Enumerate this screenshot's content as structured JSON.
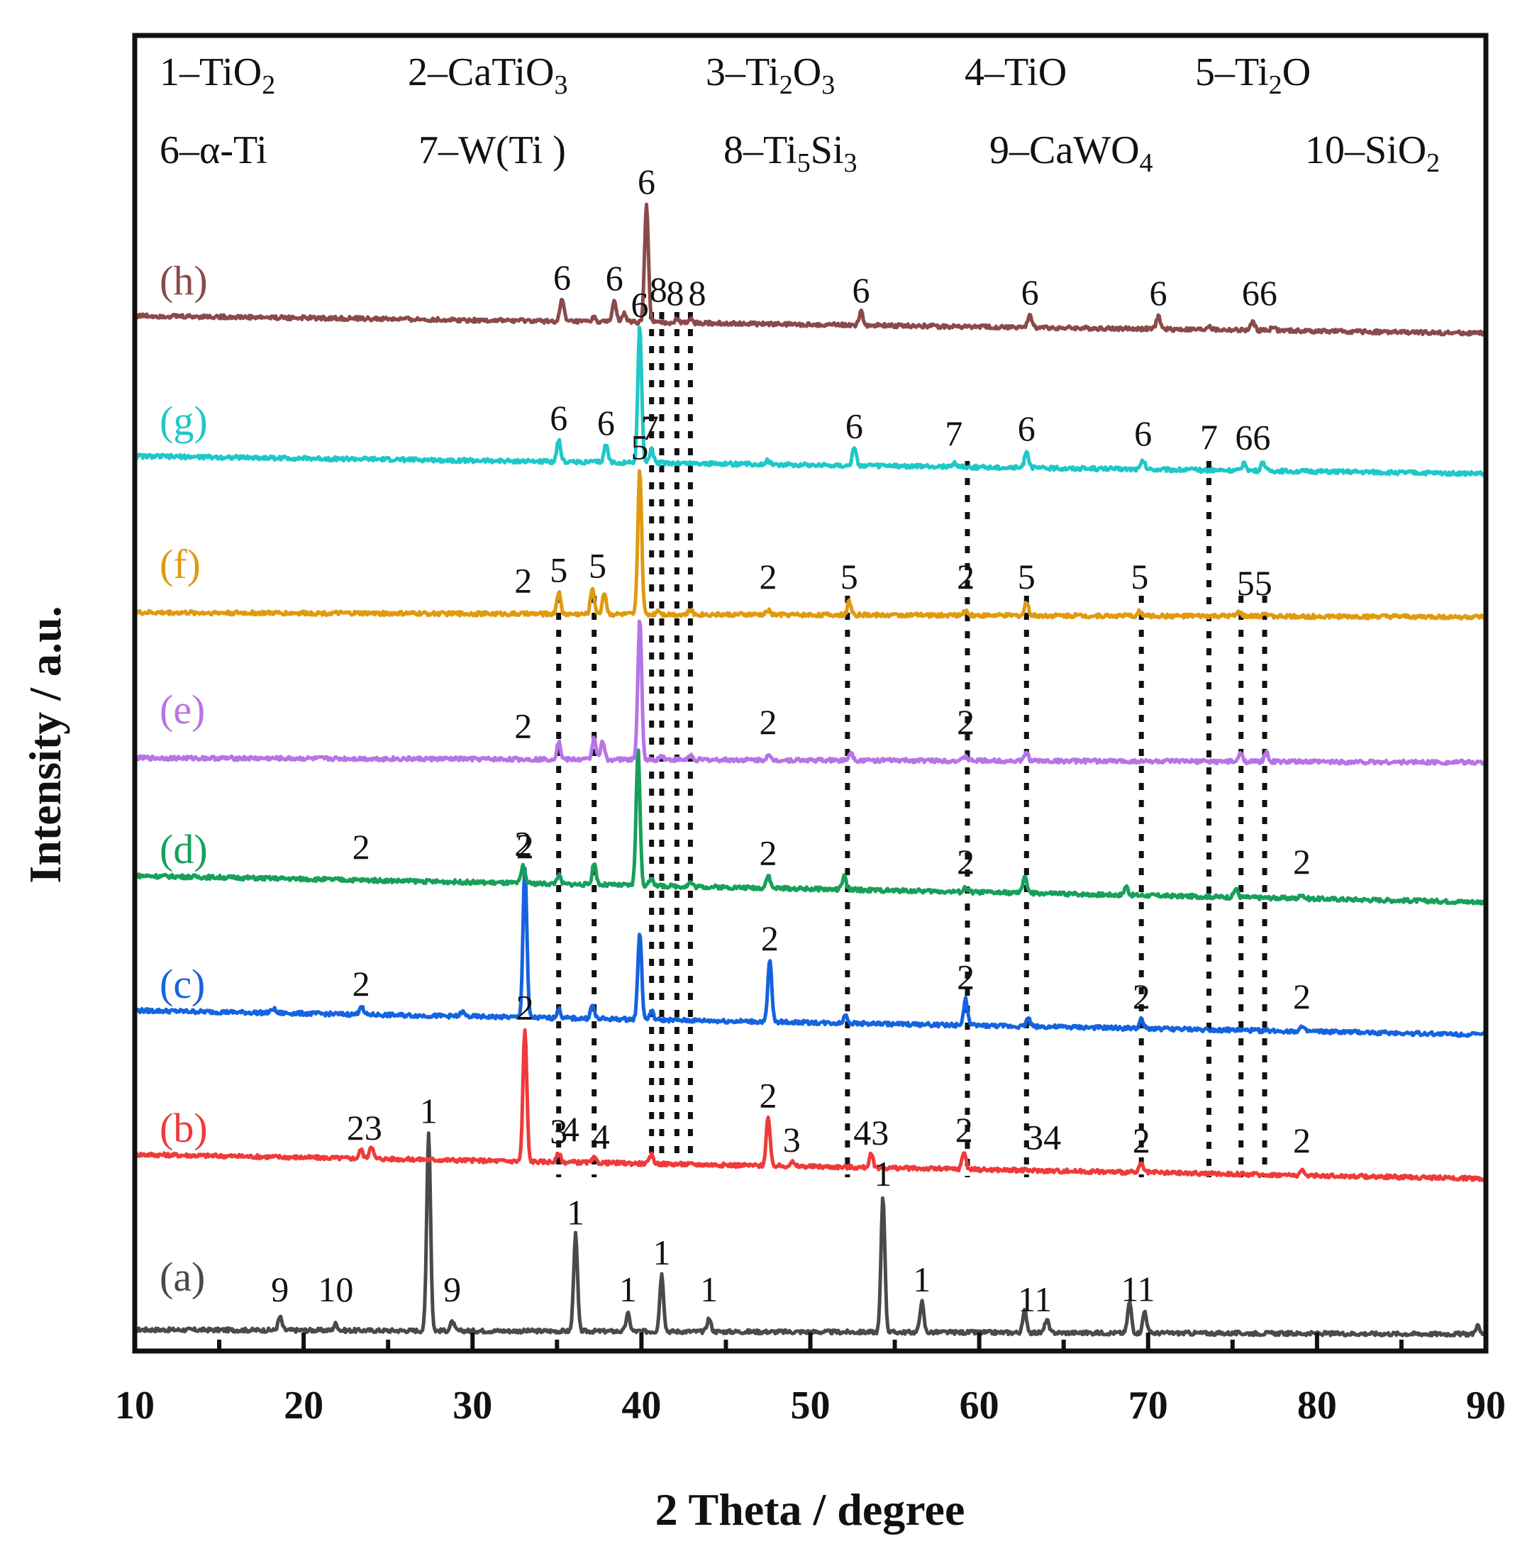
{
  "chart_data": {
    "type": "line",
    "xlabel": "2 Theta / degree",
    "ylabel": "Intensity / a.u.",
    "xlim": [
      10,
      90
    ],
    "x_ticks": [
      10,
      20,
      30,
      40,
      50,
      60,
      70,
      80,
      90
    ],
    "legend_rows": [
      [
        {
          "num": "1",
          "pre": "TiO",
          "sub1": "2",
          "mid": "",
          "sub2": ""
        },
        {
          "num": "2",
          "pre": "CaTiO",
          "sub1": "3",
          "mid": "",
          "sub2": ""
        },
        {
          "num": "3",
          "pre": "Ti",
          "sub1": "2",
          "mid": "O",
          "sub2": "3"
        },
        {
          "num": "4",
          "pre": "TiO",
          "sub1": "",
          "mid": "",
          "sub2": ""
        },
        {
          "num": "5",
          "pre": "Ti",
          "sub1": "2",
          "mid": "O",
          "sub2": ""
        }
      ],
      [
        {
          "num": "6",
          "pre": "α-Ti",
          "sub1": "",
          "mid": "",
          "sub2": ""
        },
        {
          "num": "7",
          "pre": "W(Ti )",
          "sub1": "",
          "mid": "",
          "sub2": ""
        },
        {
          "num": "8",
          "pre": "Ti",
          "sub1": "5",
          "mid": "Si",
          "sub2": "3"
        },
        {
          "num": "9",
          "pre": "CaWO",
          "sub1": "4",
          "mid": "",
          "sub2": ""
        },
        {
          "num": "10",
          "pre": "SiO",
          "sub1": "2",
          "mid": "",
          "sub2": ""
        }
      ]
    ],
    "reference_lines_2theta": [
      35.1,
      37.2,
      40.6,
      41.2,
      42.1,
      42.9,
      52.2,
      59.3,
      62.8,
      69.6,
      73.6,
      75.5,
      76.9
    ],
    "series": [
      {
        "name": "(a)",
        "color": "#4a4a4a",
        "baseline": [
          [
            10,
            0.0
          ],
          [
            90,
            -1.0
          ]
        ],
        "peaks": [
          [
            18.6,
            3
          ],
          [
            21.9,
            1.5
          ],
          [
            27.4,
            45
          ],
          [
            28.8,
            2
          ],
          [
            36.1,
            22
          ],
          [
            39.2,
            4
          ],
          [
            41.2,
            13
          ],
          [
            44.0,
            3
          ],
          [
            54.3,
            31
          ],
          [
            56.6,
            7
          ],
          [
            62.7,
            5
          ],
          [
            64.0,
            3
          ],
          [
            68.9,
            7
          ],
          [
            69.8,
            5
          ],
          [
            89.5,
            2
          ]
        ],
        "labels": [
          {
            "x": 18.6,
            "text": "9"
          },
          {
            "x": 21.9,
            "text": "10"
          },
          {
            "x": 27.4,
            "text": "1"
          },
          {
            "x": 28.8,
            "text": "9"
          },
          {
            "x": 36.1,
            "text": "1"
          },
          {
            "x": 39.2,
            "text": "1"
          },
          {
            "x": 41.2,
            "text": "1"
          },
          {
            "x": 44.0,
            "text": "1"
          },
          {
            "x": 54.3,
            "text": "1"
          },
          {
            "x": 56.6,
            "text": "1"
          },
          {
            "x": 63.3,
            "text": "11"
          },
          {
            "x": 69.4,
            "text": "11"
          }
        ]
      },
      {
        "name": "(b)",
        "color": "#f03a3a",
        "baseline": [
          [
            10,
            6.0
          ],
          [
            90,
            0.5
          ]
        ],
        "peaks": [
          [
            23.4,
            2
          ],
          [
            24.0,
            3
          ],
          [
            33.1,
            30
          ],
          [
            35.1,
            2
          ],
          [
            37.2,
            1
          ],
          [
            40.6,
            2
          ],
          [
            47.5,
            11
          ],
          [
            48.9,
            1
          ],
          [
            53.6,
            3
          ],
          [
            59.1,
            4
          ],
          [
            69.6,
            2
          ],
          [
            79.1,
            1
          ]
        ],
        "labels": [
          {
            "x": 23.6,
            "text": "23"
          },
          {
            "x": 33.1,
            "text": "2"
          },
          {
            "x": 35.8,
            "text": "4"
          },
          {
            "x": 35.1,
            "text": "3"
          },
          {
            "x": 37.6,
            "text": "4"
          },
          {
            "x": 47.5,
            "text": "2"
          },
          {
            "x": 48.9,
            "text": "3"
          },
          {
            "x": 53.6,
            "text": "43"
          },
          {
            "x": 59.1,
            "text": "2"
          },
          {
            "x": 63.8,
            "text": "34"
          },
          {
            "x": 69.6,
            "text": "2"
          },
          {
            "x": 79.1,
            "text": "2"
          }
        ]
      },
      {
        "name": "(c)",
        "color": "#1463e0",
        "baseline": [
          [
            10,
            6.0
          ],
          [
            90,
            0.5
          ]
        ],
        "peaks": [
          [
            18.2,
            1
          ],
          [
            23.4,
            2
          ],
          [
            29.4,
            1
          ],
          [
            33.1,
            34
          ],
          [
            35.1,
            2
          ],
          [
            37.1,
            3
          ],
          [
            39.9,
            20
          ],
          [
            40.6,
            2
          ],
          [
            47.6,
            14
          ],
          [
            52.1,
            2
          ],
          [
            59.2,
            6
          ],
          [
            62.9,
            2
          ],
          [
            69.6,
            2
          ],
          [
            79.1,
            1
          ]
        ],
        "labels": [
          {
            "x": 23.4,
            "text": "2"
          },
          {
            "x": 33.1,
            "text": "2"
          },
          {
            "x": 47.6,
            "text": "2"
          },
          {
            "x": 59.2,
            "text": "2"
          },
          {
            "x": 69.6,
            "text": "2"
          },
          {
            "x": 79.1,
            "text": "2"
          }
        ]
      },
      {
        "name": "(d)",
        "color": "#17a05a",
        "baseline": [
          [
            10,
            6.0
          ],
          [
            90,
            0.0
          ]
        ],
        "peaks": [
          [
            33.0,
            4
          ],
          [
            35.1,
            2
          ],
          [
            37.2,
            5
          ],
          [
            39.8,
            31
          ],
          [
            40.6,
            2
          ],
          [
            42.9,
            1
          ],
          [
            47.5,
            3
          ],
          [
            52.0,
            3
          ],
          [
            59.2,
            1
          ],
          [
            62.7,
            4
          ],
          [
            68.7,
            2
          ],
          [
            75.2,
            2
          ],
          [
            79.1,
            1
          ]
        ],
        "labels": [
          {
            "x": 23.4,
            "text": "2"
          },
          {
            "x": 33.0,
            "text": "2"
          },
          {
            "x": 47.5,
            "text": "2"
          },
          {
            "x": 59.2,
            "text": "2"
          },
          {
            "x": 79.1,
            "text": "2"
          }
        ]
      },
      {
        "name": "(e)",
        "color": "#b774e6",
        "baseline": [
          [
            10,
            1.0
          ],
          [
            90,
            0.0
          ]
        ],
        "peaks": [
          [
            35.1,
            4
          ],
          [
            37.2,
            5
          ],
          [
            37.7,
            4
          ],
          [
            39.9,
            32
          ],
          [
            41.2,
            1
          ],
          [
            42.9,
            1
          ],
          [
            47.5,
            1
          ],
          [
            52.4,
            2
          ],
          [
            59.2,
            1
          ],
          [
            62.8,
            2
          ],
          [
            75.5,
            2
          ],
          [
            77.0,
            2
          ]
        ],
        "labels": [
          {
            "x": 33.0,
            "text": "2"
          },
          {
            "x": 47.5,
            "text": "2"
          },
          {
            "x": 59.2,
            "text": "2"
          }
        ]
      },
      {
        "name": "(f)",
        "color": "#e09a10",
        "baseline": [
          [
            10,
            1.0
          ],
          [
            90,
            0.0
          ]
        ],
        "peaks": [
          [
            35.1,
            5
          ],
          [
            37.1,
            6
          ],
          [
            37.8,
            5
          ],
          [
            39.9,
            33
          ],
          [
            41.0,
            1
          ],
          [
            42.9,
            1
          ],
          [
            47.5,
            1
          ],
          [
            52.3,
            3
          ],
          [
            59.2,
            1
          ],
          [
            62.8,
            3
          ],
          [
            69.5,
            1
          ],
          [
            75.4,
            1
          ],
          [
            76.9,
            1
          ]
        ],
        "labels": [
          {
            "x": 33.0,
            "text": "2"
          },
          {
            "x": 35.1,
            "text": "5"
          },
          {
            "x": 37.4,
            "text": "5"
          },
          {
            "x": 39.9,
            "text": "5"
          },
          {
            "x": 47.5,
            "text": "2"
          },
          {
            "x": 52.3,
            "text": "5"
          },
          {
            "x": 59.2,
            "text": "2"
          },
          {
            "x": 62.8,
            "text": "5"
          },
          {
            "x": 69.5,
            "text": "5"
          },
          {
            "x": 76.3,
            "text": "55"
          }
        ]
      },
      {
        "name": "(g)",
        "color": "#1ec8c8",
        "baseline": [
          [
            10,
            4.0
          ],
          [
            90,
            0.0
          ]
        ],
        "peaks": [
          [
            35.1,
            5
          ],
          [
            37.9,
            4
          ],
          [
            39.9,
            31
          ],
          [
            40.6,
            3
          ],
          [
            47.5,
            1
          ],
          [
            52.6,
            4
          ],
          [
            58.5,
            1
          ],
          [
            62.8,
            4
          ],
          [
            69.7,
            2
          ],
          [
            75.7,
            2
          ],
          [
            76.8,
            2
          ]
        ],
        "labels": [
          {
            "x": 35.1,
            "text": "6"
          },
          {
            "x": 37.9,
            "text": "6"
          },
          {
            "x": 39.9,
            "text": "6"
          },
          {
            "x": 40.5,
            "text": "7"
          },
          {
            "x": 52.6,
            "text": "6"
          },
          {
            "x": 58.5,
            "text": "7"
          },
          {
            "x": 62.8,
            "text": "6"
          },
          {
            "x": 69.7,
            "text": "6"
          },
          {
            "x": 73.6,
            "text": "7"
          },
          {
            "x": 76.2,
            "text": "66"
          }
        ]
      },
      {
        "name": "(h)",
        "color": "#8b4a4a",
        "baseline": [
          [
            10,
            4.0
          ],
          [
            90,
            0.0
          ]
        ],
        "peaks": [
          [
            35.3,
            5
          ],
          [
            37.2,
            1
          ],
          [
            38.4,
            5
          ],
          [
            39.0,
            2
          ],
          [
            40.3,
            27
          ],
          [
            42.1,
            1
          ],
          [
            42.9,
            1
          ],
          [
            53.0,
            3
          ],
          [
            63.0,
            3
          ],
          [
            70.6,
            3
          ],
          [
            73.6,
            1
          ],
          [
            76.2,
            2
          ],
          [
            77.4,
            1
          ]
        ],
        "labels": [
          {
            "x": 35.3,
            "text": "6"
          },
          {
            "x": 38.4,
            "text": "6"
          },
          {
            "x": 40.3,
            "text": "6"
          },
          {
            "x": 41.0,
            "text": "8"
          },
          {
            "x": 42.0,
            "text": "8"
          },
          {
            "x": 43.3,
            "text": "8"
          },
          {
            "x": 53.0,
            "text": "6"
          },
          {
            "x": 63.0,
            "text": "6"
          },
          {
            "x": 70.6,
            "text": "6"
          },
          {
            "x": 76.6,
            "text": "66"
          }
        ]
      }
    ]
  }
}
